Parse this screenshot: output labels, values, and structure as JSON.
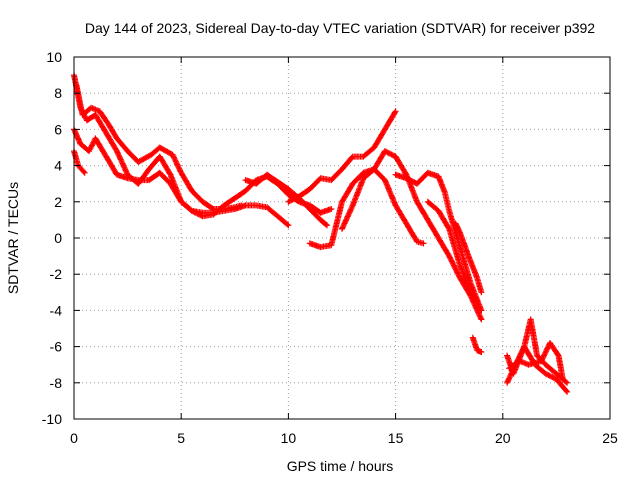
{
  "chart_data": {
    "type": "scatter",
    "title": "Day 144 of 2023, Sidereal Day-to-day VTEC variation (SDTVAR) for receiver p392",
    "xlabel": "GPS time / hours",
    "ylabel": "SDTVAR / TECUs",
    "xlim": [
      0,
      25
    ],
    "ylim": [
      -10,
      10
    ],
    "x_ticks": [
      "0",
      "5",
      "10",
      "15",
      "20",
      "25"
    ],
    "y_ticks": [
      "-10",
      "-8",
      "-6",
      "-4",
      "-2",
      "0",
      "2",
      "4",
      "6",
      "8",
      "10"
    ],
    "grid": true,
    "marker": "+",
    "color": "#ff0000",
    "series": [
      {
        "name": "track-1",
        "x": [
          0.0,
          0.3,
          0.6,
          1.0,
          1.5,
          2.0,
          2.5,
          3.0,
          3.5,
          4.0,
          4.5,
          5.0,
          5.5,
          6.0,
          6.5,
          7.0,
          7.5,
          8.0,
          8.5,
          9.0,
          9.5,
          10.0,
          10.5,
          11.0,
          11.5,
          12.0
        ],
        "y": [
          9.0,
          7.2,
          6.5,
          6.8,
          5.8,
          4.8,
          3.5,
          3.0,
          3.8,
          4.5,
          3.5,
          2.0,
          1.5,
          1.2,
          1.3,
          1.8,
          2.2,
          2.6,
          3.2,
          3.4,
          3.0,
          2.4,
          2.0,
          1.8,
          1.4,
          1.6
        ]
      },
      {
        "name": "track-2",
        "x": [
          0.1,
          0.4,
          0.8,
          1.2,
          1.6,
          2.0,
          2.5,
          3.0,
          3.6,
          4.0,
          4.6,
          5.0,
          5.5,
          6.0,
          6.5,
          7.0,
          7.5,
          7.8
        ],
        "y": [
          8.5,
          6.8,
          7.2,
          7.0,
          6.3,
          5.5,
          4.8,
          4.2,
          4.6,
          5.0,
          4.6,
          3.6,
          2.6,
          2.0,
          1.6,
          1.6,
          1.7,
          1.8
        ]
      },
      {
        "name": "track-3",
        "x": [
          0.0,
          0.3,
          0.7,
          1.0,
          1.5,
          2.0,
          2.5,
          3.0,
          3.5,
          4.0,
          4.5,
          5.0,
          5.5,
          6.0,
          6.5,
          7.0,
          7.5,
          8.0,
          8.5,
          9.0,
          9.5,
          10.0
        ],
        "y": [
          6.0,
          5.2,
          4.8,
          5.5,
          4.5,
          3.5,
          3.3,
          3.2,
          3.2,
          3.6,
          3.0,
          2.0,
          1.5,
          1.4,
          1.4,
          1.5,
          1.6,
          1.8,
          1.8,
          1.7,
          1.2,
          0.7
        ]
      },
      {
        "name": "track-4",
        "x": [
          0.0,
          0.2,
          0.5
        ],
        "y": [
          4.8,
          4.0,
          3.6
        ]
      },
      {
        "name": "track-5",
        "x": [
          8.0,
          8.5,
          9.0,
          9.5,
          10.0,
          10.5,
          11.0,
          11.5,
          11.8
        ],
        "y": [
          3.2,
          3.0,
          3.5,
          3.1,
          2.7,
          2.2,
          1.6,
          1.0,
          0.7
        ]
      },
      {
        "name": "track-6",
        "x": [
          10.0,
          10.5,
          11.0,
          11.5,
          12.0,
          12.5,
          13.0,
          13.5,
          14.0,
          14.5,
          15.0
        ],
        "y": [
          2.0,
          2.3,
          2.7,
          3.3,
          3.2,
          3.8,
          4.5,
          4.5,
          5.0,
          6.0,
          7.0
        ]
      },
      {
        "name": "track-7",
        "x": [
          11.0,
          11.5,
          12.0,
          12.5,
          13.0,
          13.5,
          14.0,
          14.5,
          15.0,
          15.5,
          16.0,
          16.5,
          17.0,
          17.5,
          18.0,
          18.5,
          19.0
        ],
        "y": [
          -0.3,
          -0.5,
          -0.4,
          2.0,
          3.0,
          3.6,
          3.8,
          4.8,
          4.5,
          3.5,
          2.0,
          1.0,
          0.0,
          -1.0,
          -2.2,
          -3.2,
          -4.5
        ]
      },
      {
        "name": "track-8",
        "x": [
          12.5,
          13.0,
          13.5,
          14.0,
          14.5,
          15.0,
          15.5,
          16.0,
          16.3
        ],
        "y": [
          0.5,
          1.8,
          3.3,
          3.8,
          3.2,
          1.8,
          0.8,
          -0.2,
          -0.3
        ]
      },
      {
        "name": "track-9",
        "x": [
          15.0,
          15.5,
          16.0,
          16.5,
          17.0,
          17.3,
          17.5,
          18.0,
          18.5,
          19.0
        ],
        "y": [
          3.5,
          3.3,
          3.0,
          3.6,
          3.4,
          2.5,
          1.5,
          -0.5,
          -2.5,
          -4.0
        ]
      },
      {
        "name": "track-10",
        "x": [
          16.5,
          17.0,
          17.5,
          18.0,
          18.5,
          18.8
        ],
        "y": [
          2.0,
          1.5,
          0.5,
          -1.5,
          -3.0,
          -3.5
        ]
      },
      {
        "name": "track-11",
        "x": [
          17.8,
          18.0,
          18.4,
          18.8,
          19.0
        ],
        "y": [
          0.8,
          0.3,
          -1.0,
          -2.2,
          -3.0
        ]
      },
      {
        "name": "track-12",
        "x": [
          18.6,
          18.8,
          19.0
        ],
        "y": [
          -5.5,
          -6.2,
          -6.3
        ]
      },
      {
        "name": "track-13",
        "x": [
          20.2,
          20.5,
          21.0,
          21.5,
          22.0,
          22.5,
          23.0
        ],
        "y": [
          -6.5,
          -7.5,
          -6.0,
          -7.0,
          -7.5,
          -7.8,
          -8.5
        ]
      },
      {
        "name": "track-14",
        "x": [
          20.2,
          20.6,
          21.0,
          21.3,
          21.6,
          22.0,
          22.5,
          23.0
        ],
        "y": [
          -8.0,
          -7.0,
          -6.0,
          -4.5,
          -6.5,
          -7.0,
          -7.5,
          -8.0
        ]
      },
      {
        "name": "track-15",
        "x": [
          20.3,
          20.8,
          21.2,
          21.8,
          22.2,
          22.6,
          22.8
        ],
        "y": [
          -7.2,
          -6.8,
          -7.0,
          -6.8,
          -5.8,
          -6.5,
          -7.8
        ]
      }
    ]
  }
}
